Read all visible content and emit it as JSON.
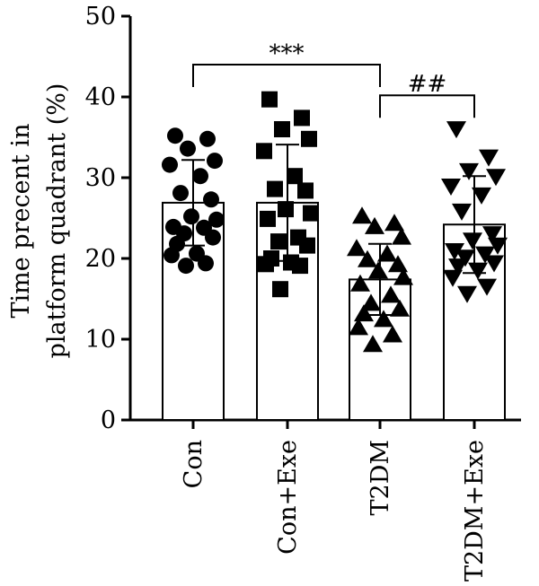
{
  "chart_data": {
    "type": "bar",
    "categories": [
      "Con",
      "Con+Exe",
      "T2DM",
      "T2DM+Exe"
    ],
    "values": [
      26.9,
      26.9,
      17.4,
      24.2
    ],
    "sd": [
      5.3,
      7.2,
      4.4,
      6.0
    ],
    "ylabel_line1": "Time precent in",
    "ylabel_line2": "platform quadrant (%)",
    "ylim": [
      0,
      50
    ],
    "yticks": [
      "0",
      "10",
      "20",
      "30",
      "40",
      "50"
    ],
    "markers": [
      "circle",
      "square",
      "triangle-up",
      "triangle-down"
    ],
    "points": [
      [
        35.2,
        34.8,
        33.6,
        32.1,
        31.6,
        30.2,
        28.1,
        27.3,
        25.2,
        24.8,
        23.9,
        23.8,
        23.1,
        22.6,
        21.8,
        20.6,
        20.4,
        19.4,
        19.1
      ],
      [
        39.7,
        37.4,
        36.0,
        34.8,
        33.3,
        30.2,
        28.6,
        28.4,
        26.1,
        25.6,
        24.9,
        22.6,
        22.1,
        21.6,
        20.0,
        19.5,
        19.3,
        19.1,
        16.2
      ],
      [
        25.2,
        24.3,
        23.9,
        22.6,
        21.2,
        20.5,
        19.8,
        19.2,
        18.4,
        17.6,
        16.8,
        15.4,
        14.4,
        13.7,
        13.1,
        12.4,
        11.4,
        10.5,
        9.3
      ],
      [
        36.1,
        32.6,
        30.9,
        30.2,
        29.0,
        27.9,
        25.9,
        23.1,
        22.3,
        21.7,
        21.0,
        20.6,
        20.2,
        19.5,
        19.1,
        18.6,
        17.7,
        16.6,
        15.7
      ]
    ],
    "annotations": [
      {
        "from": 0,
        "to": 2,
        "y": 44.0,
        "label": "***"
      },
      {
        "from": 2,
        "to": 3,
        "y": 40.2,
        "label": "##"
      }
    ],
    "grid": false,
    "legend": "none"
  }
}
